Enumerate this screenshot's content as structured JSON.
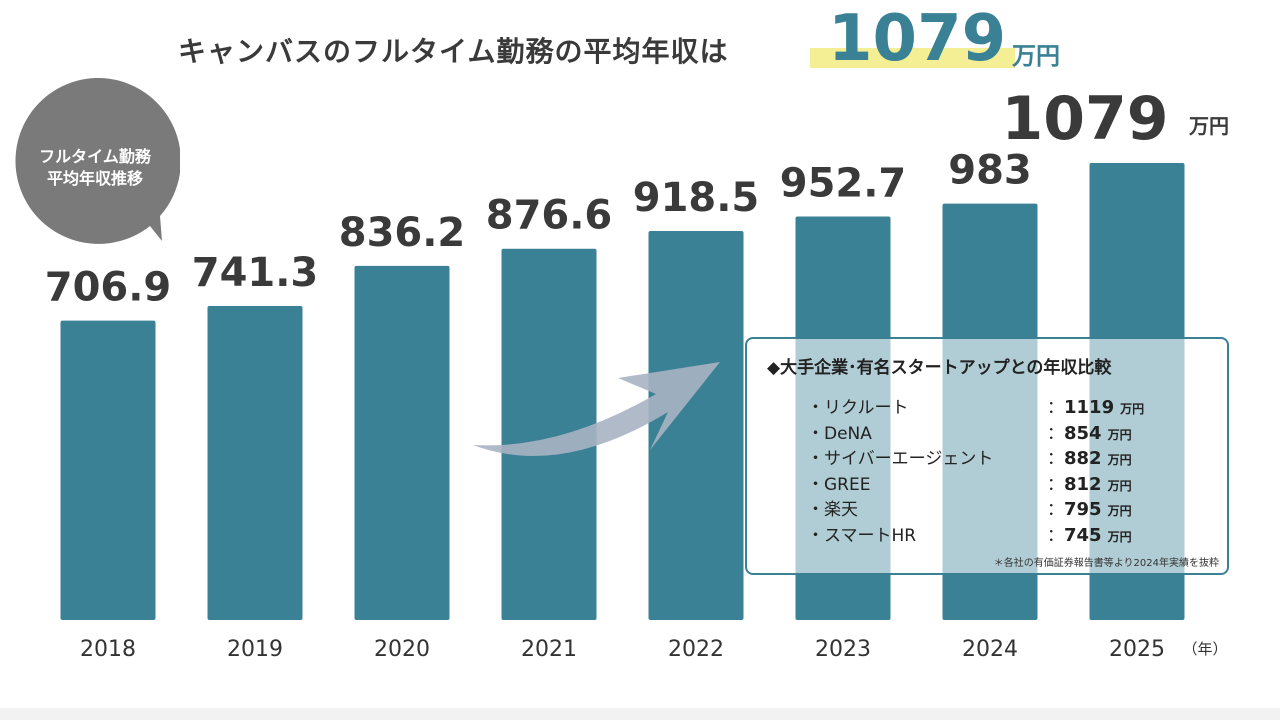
{
  "headline": {
    "text": "キャンバスのフルタイム勤務の平均年収は",
    "value": "1079",
    "unit": "万円"
  },
  "bubble": {
    "line1": "フルタイム勤務",
    "line2": "平均年収推移"
  },
  "chart_data": {
    "type": "bar",
    "categories": [
      "2018",
      "2019",
      "2020",
      "2021",
      "2022",
      "2023",
      "2024",
      "2025"
    ],
    "values": [
      706.9,
      741.3,
      836.2,
      876.6,
      918.5,
      952.7,
      983,
      1079
    ],
    "value_labels": [
      "706.9",
      "741.3",
      "836.2",
      "876.6",
      "918.5",
      "952.7",
      "983",
      "1079"
    ],
    "highlight_index": 7,
    "highlight_unit": "万円",
    "x_unit": "（年）",
    "bar_color": "#3a8195",
    "label_color": "#3a3a3a",
    "ylim": [
      0,
      1150
    ]
  },
  "comparison": {
    "title": "◆大手企業･有名スタートアップとの年収比較",
    "items": [
      {
        "name": "・リクルート",
        "value": "1119",
        "unit": "万円"
      },
      {
        "name": "・DeNA",
        "value": "854",
        "unit": "万円"
      },
      {
        "name": "・サイバーエージェント",
        "value": "882",
        "unit": "万円"
      },
      {
        "name": "・GREE",
        "value": "812",
        "unit": "万円"
      },
      {
        "name": "・楽天",
        "value": "795",
        "unit": "万円"
      },
      {
        "name": "・スマートHR",
        "value": "745",
        "unit": "万円"
      }
    ],
    "note": "＊各社の有価証券報告書等より2024年実績を抜粋"
  },
  "colors": {
    "accent": "#3a8195",
    "highlight": "#f4ef95",
    "bubble": "#7a7a7a",
    "arrow": "#a9b3c2"
  }
}
